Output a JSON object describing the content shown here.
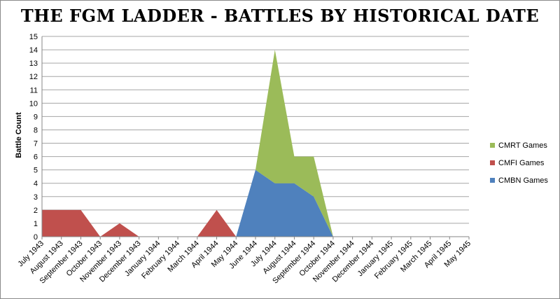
{
  "chart_data": {
    "type": "area",
    "title": "The FGM Ladder - Battles by Historical Date",
    "xlabel": "",
    "ylabel": "Battle Count",
    "ylim": [
      0,
      15
    ],
    "yticks": [
      "0",
      "1",
      "2",
      "3",
      "4",
      "5",
      "6",
      "7",
      "8",
      "9",
      "10",
      "11",
      "12",
      "13",
      "14",
      "15"
    ],
    "grid": true,
    "legend_position": "right",
    "stacked": true,
    "categories": [
      "July 1943",
      "August 1943",
      "September 1943",
      "October 1943",
      "November 1943",
      "December 1943",
      "January 1944",
      "February 1944",
      "March 1944",
      "April 1944",
      "May 1944",
      "June 1944",
      "July 1944",
      "August 1944",
      "September 1944",
      "October 1944",
      "November 1944",
      "December 1944",
      "January 1945",
      "February 1945",
      "March 1945",
      "April 1945",
      "May 1945"
    ],
    "series": [
      {
        "name": "CMBN Games",
        "color": "#4f81bd",
        "values": [
          0,
          0,
          0,
          0,
          0,
          0,
          0,
          0,
          0,
          0,
          0,
          5,
          4,
          4,
          3,
          0,
          0,
          0,
          0,
          0,
          0,
          0,
          0
        ]
      },
      {
        "name": "CMFI Games",
        "color": "#c0504d",
        "values": [
          2,
          2,
          2,
          0,
          1,
          0,
          0,
          0,
          0,
          2,
          0,
          0,
          0,
          0,
          0,
          0,
          0,
          0,
          0,
          0,
          0,
          0,
          0
        ]
      },
      {
        "name": "CMRT Games",
        "color": "#9bbb59",
        "values": [
          0,
          0,
          0,
          0,
          0,
          0,
          0,
          0,
          0,
          0,
          0,
          0,
          10,
          2,
          3,
          0,
          0,
          0,
          0,
          0,
          0,
          0,
          0
        ]
      }
    ],
    "legend_order": [
      "CMRT Games",
      "CMFI Games",
      "CMBN Games"
    ]
  }
}
